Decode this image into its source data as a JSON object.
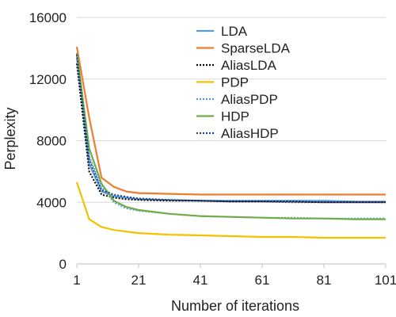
{
  "chart_data": {
    "type": "line",
    "xlabel": "Number of iterations",
    "ylabel": "Perplexity",
    "xlim": [
      1,
      101
    ],
    "ylim": [
      0,
      16000
    ],
    "x_ticks": [
      "1",
      "21",
      "41",
      "61",
      "81",
      "101"
    ],
    "y_ticks": [
      "0",
      "4000",
      "8000",
      "12000",
      "16000"
    ],
    "grid": "horizontal",
    "legend_position": "top-right",
    "x": [
      1,
      5,
      9,
      13,
      17,
      21,
      31,
      41,
      51,
      61,
      71,
      81,
      91,
      101
    ],
    "series": [
      {
        "name": "LDA",
        "color": "#5b9bd5",
        "dash": "solid",
        "values": [
          13500,
          6500,
          4700,
          4400,
          4300,
          4200,
          4150,
          4100,
          4100,
          4100,
          4100,
          4100,
          4050,
          4050
        ]
      },
      {
        "name": "SparseLDA",
        "color": "#ed7d31",
        "dash": "solid",
        "values": [
          14100,
          9500,
          5600,
          5000,
          4700,
          4600,
          4550,
          4500,
          4500,
          4500,
          4500,
          4500,
          4500,
          4500
        ]
      },
      {
        "name": "AliasLDA",
        "color": "#000000",
        "dash": "dotted",
        "values": [
          13000,
          6000,
          4500,
          4300,
          4200,
          4150,
          4100,
          4100,
          4050,
          4050,
          4050,
          4000,
          4000,
          4000
        ]
      },
      {
        "name": "PDP",
        "color": "#f2c200",
        "dash": "solid",
        "values": [
          5300,
          2900,
          2400,
          2200,
          2100,
          2000,
          1900,
          1850,
          1800,
          1750,
          1750,
          1700,
          1700,
          1700
        ]
      },
      {
        "name": "AliasPDP",
        "color": "#5b9bd5",
        "dash": "dotted",
        "values": [
          13300,
          7000,
          5000,
          4000,
          3600,
          3450,
          3250,
          3100,
          3050,
          3000,
          3000,
          2950,
          2950,
          2950
        ]
      },
      {
        "name": "HDP",
        "color": "#70ad47",
        "dash": "solid",
        "values": [
          13700,
          7500,
          5200,
          4100,
          3700,
          3500,
          3250,
          3100,
          3050,
          3000,
          2950,
          2950,
          2900,
          2900
        ]
      },
      {
        "name": "AliasHDP",
        "color": "#1f3f8f",
        "dash": "dotted",
        "values": [
          13600,
          6800,
          4800,
          4500,
          4350,
          4250,
          4150,
          4100,
          4050,
          4050,
          4000,
          4000,
          4000,
          4000
        ]
      }
    ]
  }
}
